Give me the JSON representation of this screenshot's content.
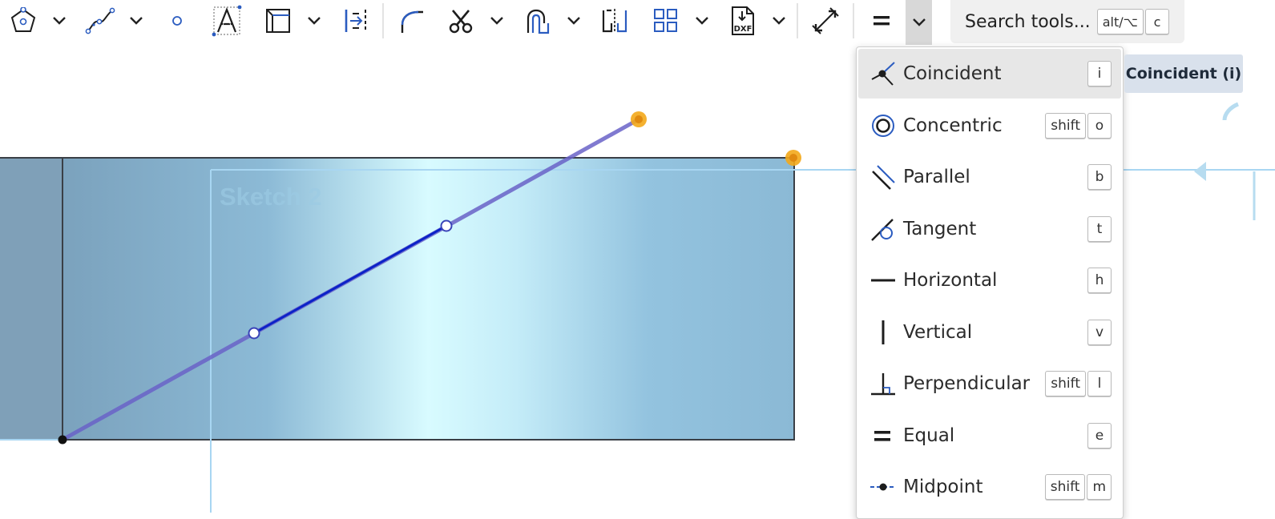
{
  "toolbar": {
    "tools": [
      {
        "name": "polygon-tool",
        "icon": "polygon-icon"
      },
      {
        "name": "spline-tool",
        "icon": "spline-icon"
      },
      {
        "name": "point-tool",
        "icon": "point-icon"
      },
      {
        "name": "text-tool",
        "icon": "text-icon"
      },
      {
        "name": "insert-image-tool",
        "icon": "image-rectangle-icon"
      },
      {
        "name": "offset-tool",
        "icon": "offset-icon"
      },
      {
        "name": "fillet-tool",
        "icon": "fillet-icon"
      },
      {
        "name": "trim-tool",
        "icon": "scissors-icon"
      },
      {
        "name": "offset-curve-tool",
        "icon": "offset-curve-icon"
      },
      {
        "name": "mirror-tool",
        "icon": "mirror-icon"
      },
      {
        "name": "pattern-tool",
        "icon": "pattern-icon"
      },
      {
        "name": "dxf-import-tool",
        "icon": "dxf-icon",
        "label": "DXF"
      },
      {
        "name": "dimension-tool",
        "icon": "dimension-icon"
      },
      {
        "name": "constraint-tool",
        "icon": "equal-icon"
      }
    ],
    "search": {
      "label": "Search tools...",
      "shortcut_1": "alt/⌥",
      "shortcut_2": "c"
    }
  },
  "canvas": {
    "sketch_label": "Sketch 2",
    "colors": {
      "face": "#8db6d0",
      "face_dark": "#7fa0b8",
      "line": "#0b22c8",
      "selection": "#f3a81a"
    }
  },
  "constraint_menu": {
    "items": [
      {
        "label": "Coincident",
        "keys": [
          "i"
        ],
        "icon": "coincident-icon"
      },
      {
        "label": "Concentric",
        "keys": [
          "shift",
          "o"
        ],
        "icon": "concentric-icon"
      },
      {
        "label": "Parallel",
        "keys": [
          "b"
        ],
        "icon": "parallel-icon"
      },
      {
        "label": "Tangent",
        "keys": [
          "t"
        ],
        "icon": "tangent-icon"
      },
      {
        "label": "Horizontal",
        "keys": [
          "h"
        ],
        "icon": "horizontal-icon"
      },
      {
        "label": "Vertical",
        "keys": [
          "v"
        ],
        "icon": "vertical-icon"
      },
      {
        "label": "Perpendicular",
        "keys": [
          "shift",
          "l"
        ],
        "icon": "perpendicular-icon"
      },
      {
        "label": "Equal",
        "keys": [
          "e"
        ],
        "icon": "equal-icon"
      },
      {
        "label": "Midpoint",
        "keys": [
          "shift",
          "m"
        ],
        "icon": "midpoint-icon"
      }
    ],
    "tooltip": "Coincident (i)"
  }
}
